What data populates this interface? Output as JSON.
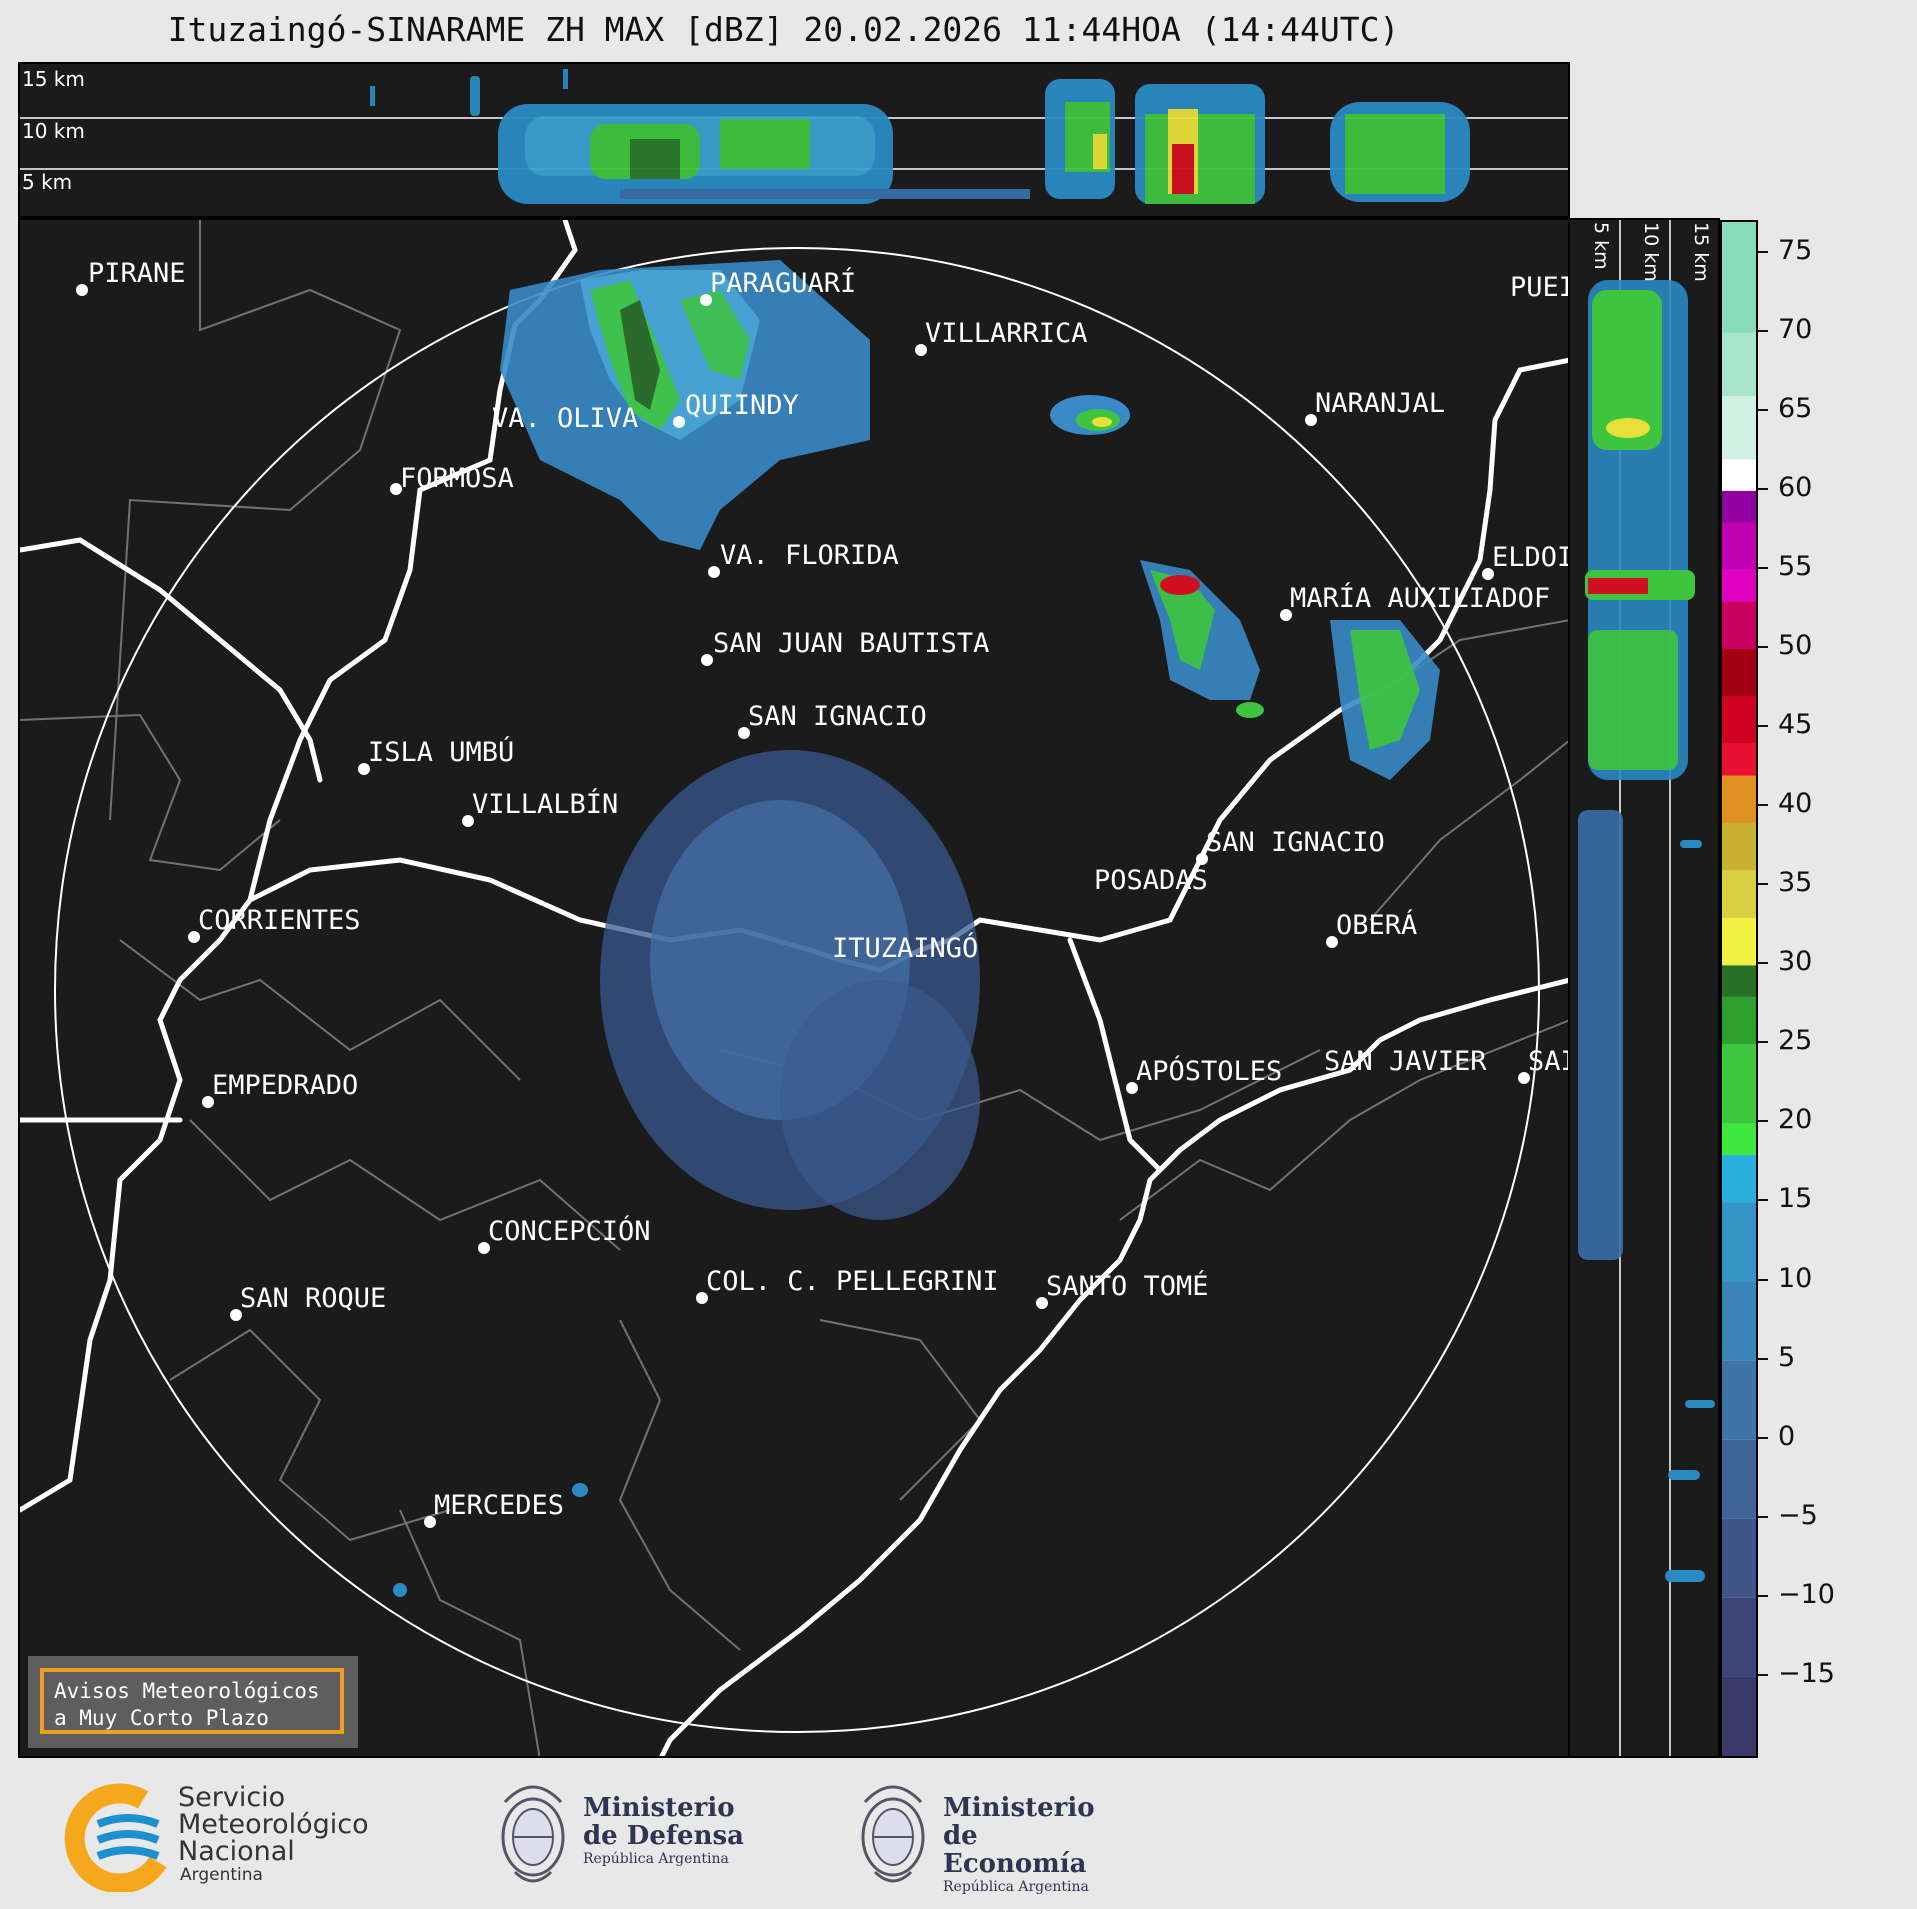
{
  "title": "Ituzaingó-SINARAME ZH MAX [dBZ] 20.02.2026 11:44HOA (14:44UTC)",
  "top_profile": {
    "altitude_labels": [
      "15 km",
      "10 km",
      "5 km"
    ]
  },
  "side_profile": {
    "altitude_labels": [
      "5 km",
      "10 km",
      "15 km"
    ]
  },
  "colorbar": {
    "unit": "dBZ",
    "ticks": [
      "75",
      "70",
      "65",
      "60",
      "55",
      "50",
      "45",
      "40",
      "35",
      "30",
      "25",
      "20",
      "15",
      "10",
      "5",
      "0",
      "−5",
      "−10",
      "−15"
    ],
    "min": -20,
    "max": 77
  },
  "cities": [
    {
      "name": "PIRANE"
    },
    {
      "name": "PARAGUARÍ"
    },
    {
      "name": "VILLARRICA"
    },
    {
      "name": "PUEI"
    },
    {
      "name": "VA. OLIVA"
    },
    {
      "name": "QUIINDY"
    },
    {
      "name": "NARANJAL"
    },
    {
      "name": "FORMOSA"
    },
    {
      "name": "VA. FLORIDA"
    },
    {
      "name": "ELDOI"
    },
    {
      "name": "MARÍA AUXILIADOF"
    },
    {
      "name": "SAN JUAN BAUTISTA"
    },
    {
      "name": "SAN IGNACIO"
    },
    {
      "name": "ISLA UMBÚ"
    },
    {
      "name": "VILLALBÍN"
    },
    {
      "name": "SAN IGNACIO"
    },
    {
      "name": "POSADAS"
    },
    {
      "name": "CORRIENTES"
    },
    {
      "name": "ITUZAINGÓ"
    },
    {
      "name": "OBERÁ"
    },
    {
      "name": "EMPEDRADO"
    },
    {
      "name": "APÓSTOLES"
    },
    {
      "name": "SAN JAVIER"
    },
    {
      "name": "SAI"
    },
    {
      "name": "CONCEPCIÓN"
    },
    {
      "name": "COL. C. PELLEGRINI"
    },
    {
      "name": "SANTO TOMÉ"
    },
    {
      "name": "SAN ROQUE"
    },
    {
      "name": "MERCEDES"
    }
  ],
  "aviso": {
    "line1": "Avisos Meteorológicos",
    "line2": "a Muy Corto Plazo"
  },
  "logos": {
    "smn": {
      "line1": "Servicio",
      "line2": "Meteorológico",
      "line3": "Nacional",
      "line4": "Argentina"
    },
    "defensa": {
      "line1": "Ministerio",
      "line2": "de Defensa",
      "line3": "República Argentina"
    },
    "economia": {
      "line1": "Ministerio",
      "line2": "de Economía",
      "line3": "República Argentina"
    }
  },
  "colors": {
    "background": "#1b1b1b",
    "page": "#e8e8e8",
    "aviso_border": "#f0a020",
    "logo_blue": "#2d3553",
    "smn_orange": "#f5a81c",
    "smn_blue": "#1a90d0"
  }
}
